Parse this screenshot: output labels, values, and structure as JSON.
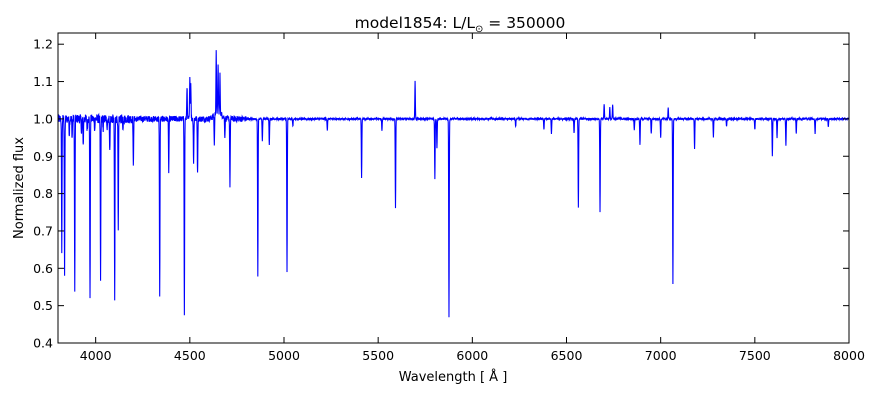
{
  "chart_data": {
    "type": "line",
    "title": "model1854: L/L",
    "title_sub": "⊙",
    "title_suffix": " = 350000",
    "xlabel": "Wavelength [ Å ]",
    "ylabel": "Normalized flux",
    "xlim": [
      3800,
      8000
    ],
    "ylim": [
      0.4,
      1.23
    ],
    "xticks": [
      4000,
      4500,
      5000,
      5500,
      6000,
      6500,
      7000,
      7500,
      8000
    ],
    "yticks": [
      0.4,
      0.5,
      0.6,
      0.7,
      0.8,
      0.9,
      1.0,
      1.1,
      1.2
    ],
    "grid": false,
    "legend": "none",
    "line_color": "#0000ff",
    "series": [
      {
        "continuum": 1.0,
        "absorption_lines": [
          [
            3820,
            0.65
          ],
          [
            3835,
            0.58
          ],
          [
            3860,
            0.96
          ],
          [
            3875,
            0.95
          ],
          [
            3889,
            0.54
          ],
          [
            3925,
            0.96
          ],
          [
            3934,
            0.93
          ],
          [
            3955,
            0.97
          ],
          [
            3970,
            0.51
          ],
          [
            3995,
            0.97
          ],
          [
            4026,
            0.56
          ],
          [
            4040,
            0.97
          ],
          [
            4060,
            0.97
          ],
          [
            4075,
            0.91
          ],
          [
            4101,
            0.51
          ],
          [
            4120,
            0.69
          ],
          [
            4145,
            0.96
          ],
          [
            4200,
            0.87
          ],
          [
            4340,
            0.52
          ],
          [
            4388,
            0.86
          ],
          [
            4471,
            0.48
          ],
          [
            4520,
            0.88
          ],
          [
            4541,
            0.85
          ],
          [
            4630,
            0.92
          ],
          [
            4686,
            0.9
          ],
          [
            4713,
            0.82
          ],
          [
            4861,
            0.58
          ],
          [
            4885,
            0.94
          ],
          [
            4922,
            0.93
          ],
          [
            5016,
            0.59
          ],
          [
            5047,
            0.98
          ],
          [
            5230,
            0.97
          ],
          [
            5412,
            0.84
          ],
          [
            5520,
            0.97
          ],
          [
            5592,
            0.76
          ],
          [
            5801,
            0.84
          ],
          [
            5812,
            0.92
          ],
          [
            5876,
            0.47
          ],
          [
            6230,
            0.98
          ],
          [
            6380,
            0.97
          ],
          [
            6420,
            0.96
          ],
          [
            6540,
            0.96
          ],
          [
            6563,
            0.76
          ],
          [
            6678,
            0.73
          ],
          [
            6860,
            0.97
          ],
          [
            6890,
            0.93
          ],
          [
            6950,
            0.96
          ],
          [
            7000,
            0.95
          ],
          [
            7065,
            0.56
          ],
          [
            7180,
            0.92
          ],
          [
            7280,
            0.95
          ],
          [
            7350,
            0.98
          ],
          [
            7500,
            0.97
          ],
          [
            7593,
            0.9
          ],
          [
            7618,
            0.95
          ],
          [
            7665,
            0.93
          ],
          [
            7720,
            0.96
          ],
          [
            7820,
            0.96
          ],
          [
            7890,
            0.98
          ]
        ],
        "emission_lines": [
          [
            4485,
            1.09
          ],
          [
            4500,
            1.12
          ],
          [
            4505,
            1.1
          ],
          [
            4640,
            1.16
          ],
          [
            4650,
            1.13
          ],
          [
            4660,
            1.1
          ],
          [
            4686,
            1.05
          ],
          [
            5696,
            1.1
          ],
          [
            6678,
            1.02
          ],
          [
            6700,
            1.04
          ],
          [
            6730,
            1.03
          ],
          [
            6745,
            1.04
          ],
          [
            7040,
            1.03
          ]
        ]
      }
    ]
  }
}
